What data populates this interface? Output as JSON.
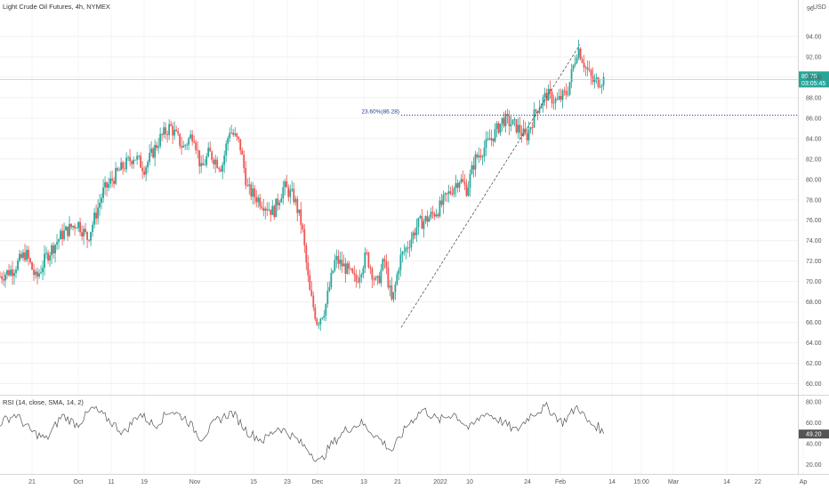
{
  "chart_data": [
    {
      "type": "candlestick",
      "title": "Light Crude Oil Futures, 4h, NYMEX",
      "currency": "USD",
      "y_axis_label_top": "96",
      "ylim": [
        59,
        96
      ],
      "yticks": [
        "94.00",
        "92.00",
        "90.00",
        "88.00",
        "86.00",
        "84.00",
        "82.00",
        "80.00",
        "78.00",
        "76.00",
        "74.00",
        "72.00",
        "70.00",
        "68.00",
        "66.00",
        "64.00",
        "62.00",
        "60.00"
      ],
      "xticks": [
        "21",
        "Oct",
        "11",
        "19",
        "Nov",
        "15",
        "23",
        "Dec",
        "13",
        "21",
        "2022",
        "10",
        "24",
        "Feb",
        "14",
        "15:00",
        "Mar",
        "14",
        "22",
        "Ap"
      ],
      "last_price": "89.79",
      "countdown": "03:05:45",
      "last_price_value": 89.79,
      "fib_label": "23.60%(86.28)",
      "fib_level": 86.28,
      "trendline": [
        [
          0,
          65.5
        ],
        [
          1,
          93.2
        ]
      ],
      "price_path": [
        [
          0,
          70.5
        ],
        [
          0.025,
          71.2
        ],
        [
          0.05,
          72.8
        ],
        [
          0.07,
          70.2
        ],
        [
          0.09,
          72.5
        ],
        [
          0.12,
          74.6
        ],
        [
          0.15,
          75.8
        ],
        [
          0.17,
          74.2
        ],
        [
          0.2,
          78.8
        ],
        [
          0.23,
          80.8
        ],
        [
          0.26,
          82.3
        ],
        [
          0.28,
          81.1
        ],
        [
          0.31,
          84.0
        ],
        [
          0.33,
          85.2
        ],
        [
          0.355,
          83.1
        ],
        [
          0.375,
          84.6
        ],
        [
          0.39,
          80.9
        ],
        [
          0.405,
          82.6
        ],
        [
          0.43,
          81.2
        ],
        [
          0.445,
          84.9
        ],
        [
          0.465,
          83.4
        ],
        [
          0.48,
          79.0
        ],
        [
          0.5,
          78.1
        ],
        [
          0.53,
          76.8
        ],
        [
          0.55,
          79.3
        ],
        [
          0.57,
          78.2
        ],
        [
          0.585,
          75.5
        ],
        [
          0.6,
          69.0
        ],
        [
          0.615,
          66.0
        ],
        [
          0.63,
          67.4
        ],
        [
          0.65,
          72.2
        ],
        [
          0.67,
          71.3
        ],
        [
          0.69,
          70.0
        ],
        [
          0.71,
          72.6
        ],
        [
          0.73,
          69.6
        ],
        [
          0.745,
          72.1
        ],
        [
          0.76,
          67.8
        ],
        [
          0.775,
          72.2
        ],
        [
          0.79,
          73.5
        ],
        [
          0.81,
          75.6
        ],
        [
          0.83,
          76.2
        ],
        [
          0.85,
          77.1
        ],
        [
          0.87,
          78.6
        ],
        [
          0.89,
          80.1
        ],
        [
          0.905,
          79.0
        ],
        [
          0.92,
          81.9
        ],
        [
          0.94,
          83.2
        ],
        [
          0.96,
          84.6
        ],
        [
          0.975,
          85.9
        ],
        [
          1.0,
          85.2
        ],
        [
          1.02,
          84.1
        ],
        [
          1.04,
          86.9
        ],
        [
          1.06,
          88.3
        ],
        [
          1.08,
          87.6
        ],
        [
          1.1,
          88.6
        ],
        [
          1.12,
          93.0
        ],
        [
          1.135,
          91.0
        ],
        [
          1.15,
          89.5
        ],
        [
          1.17,
          89.79
        ]
      ]
    },
    {
      "type": "line",
      "title": "RSI (14, close, SMA, 14, 2)",
      "ylim": [
        12,
        85
      ],
      "yticks": [
        "80.00",
        "60.00",
        "40.00",
        "20.00"
      ],
      "last_value": "49.20",
      "last_value_num": 49.2,
      "rsi_path": [
        [
          0,
          60
        ],
        [
          0.03,
          68
        ],
        [
          0.06,
          52
        ],
        [
          0.09,
          44
        ],
        [
          0.12,
          67
        ],
        [
          0.15,
          58
        ],
        [
          0.18,
          74
        ],
        [
          0.21,
          63
        ],
        [
          0.24,
          50
        ],
        [
          0.27,
          69
        ],
        [
          0.3,
          57
        ],
        [
          0.33,
          72
        ],
        [
          0.36,
          64
        ],
        [
          0.39,
          45
        ],
        [
          0.42,
          62
        ],
        [
          0.45,
          70
        ],
        [
          0.48,
          51
        ],
        [
          0.51,
          43
        ],
        [
          0.54,
          56
        ],
        [
          0.57,
          46
        ],
        [
          0.6,
          33
        ],
        [
          0.62,
          22
        ],
        [
          0.64,
          38
        ],
        [
          0.67,
          53
        ],
        [
          0.7,
          60
        ],
        [
          0.73,
          47
        ],
        [
          0.76,
          33
        ],
        [
          0.79,
          58
        ],
        [
          0.82,
          73
        ],
        [
          0.85,
          62
        ],
        [
          0.88,
          69
        ],
        [
          0.91,
          54
        ],
        [
          0.94,
          70
        ],
        [
          0.97,
          62
        ],
        [
          1.0,
          52
        ],
        [
          1.03,
          68
        ],
        [
          1.06,
          75
        ],
        [
          1.09,
          60
        ],
        [
          1.12,
          76
        ],
        [
          1.14,
          60
        ],
        [
          1.16,
          56
        ],
        [
          1.17,
          49.2
        ]
      ]
    }
  ]
}
